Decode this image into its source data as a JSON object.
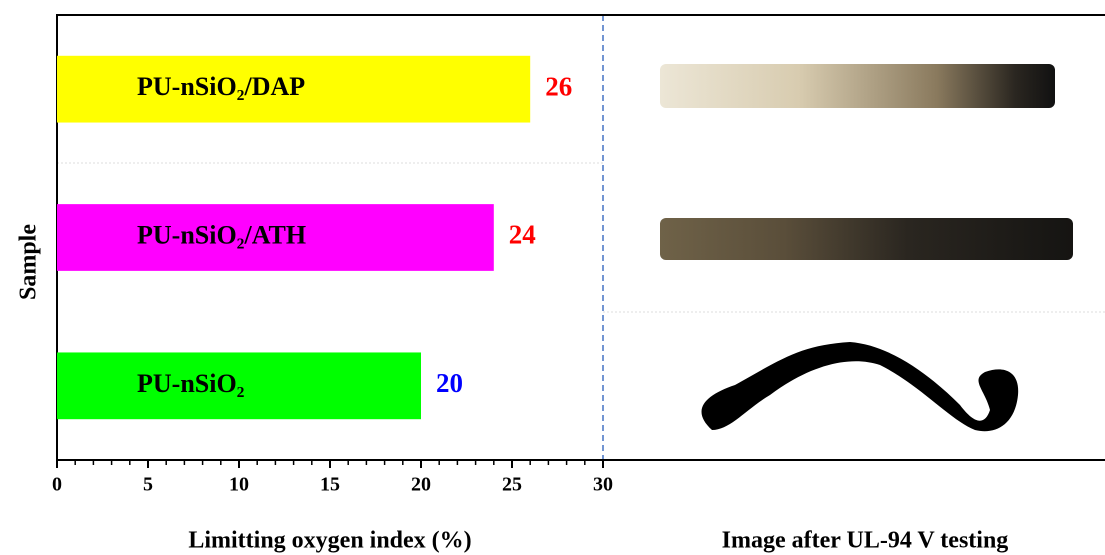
{
  "chart_data": {
    "type": "bar",
    "orientation": "horizontal",
    "categories": [
      "PU-nSiO₂/DAP",
      "PU-nSiO₂/ATH",
      "PU-nSiO₂"
    ],
    "values": [
      26,
      24,
      20
    ],
    "colors": [
      "#ffff00",
      "#ff00ff",
      "#00ff00"
    ],
    "value_label_colors": [
      "#ff0000",
      "#ff0000",
      "#0000ff"
    ],
    "xlim": [
      0,
      30
    ],
    "xticks": [
      0,
      5,
      10,
      15,
      20,
      25,
      30
    ],
    "xminorticks": [
      1,
      2,
      3,
      4,
      6,
      7,
      8,
      9,
      11,
      12,
      13,
      14,
      16,
      17,
      18,
      19,
      21,
      22,
      23,
      24,
      26,
      27,
      28,
      29
    ],
    "xlabel": "Limitting oxygen index (%)",
    "ylabel": "Sample",
    "panel_label": "Image after UL-94 V testing"
  }
}
